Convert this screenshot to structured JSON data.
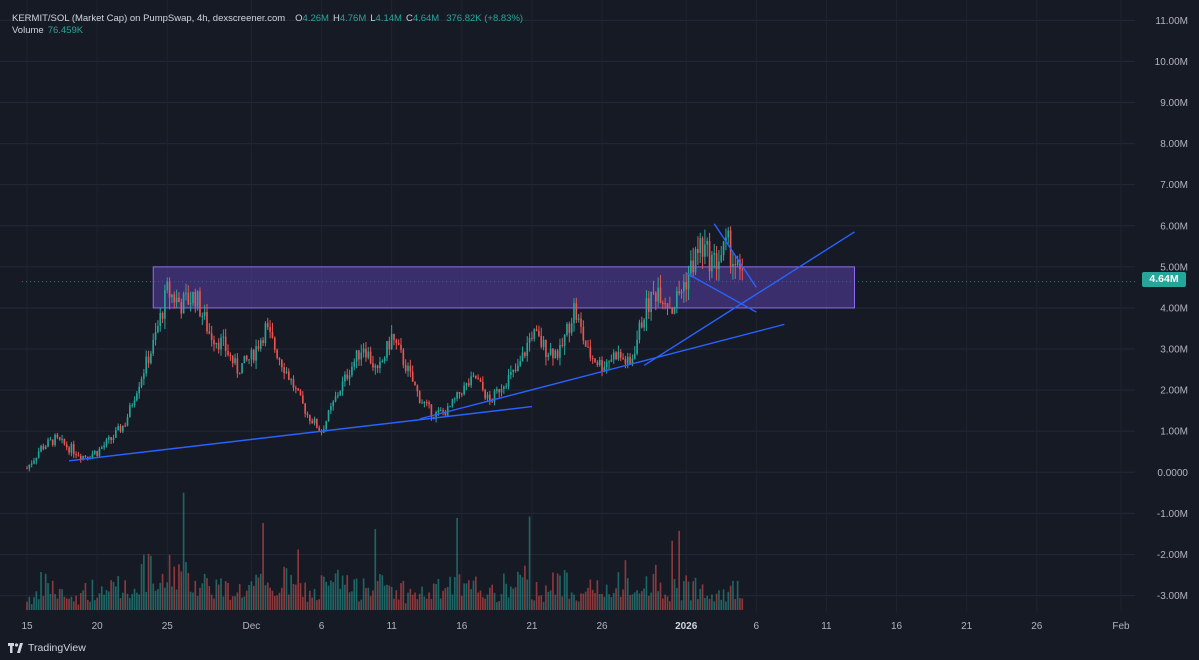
{
  "legend": {
    "symbol": "KERMIT/SOL (Market Cap) on PumpSwap, 4h, dexscreener.com",
    "o_label": "O",
    "o_value": "4.26M",
    "h_label": "H",
    "h_value": "4.76M",
    "l_label": "L",
    "l_value": "4.14M",
    "c_label": "C",
    "c_value": "4.64M",
    "change": "376.82K (+8.83%)",
    "volume_label": "Volume",
    "volume_value": "76.459K"
  },
  "price_badge": "4.64M",
  "branding": "TradingView",
  "colors": {
    "background": "#161a25",
    "up": "#26a69a",
    "down": "#ef5350",
    "trendline": "#2962ff",
    "zone_fill": "#5b3fa8",
    "zone_border": "#8e6cf0"
  },
  "chart_data": {
    "type": "candlestick",
    "timeframe": "4h",
    "y_ticks": [
      "11.00M",
      "10.00M",
      "9.00M",
      "8.00M",
      "7.00M",
      "6.00M",
      "5.00M",
      "4.00M",
      "3.00M",
      "2.00M",
      "1.00M",
      "0.0000",
      "-1.00M",
      "-2.00M",
      "-3.00M"
    ],
    "y_tick_values": [
      11,
      10,
      9,
      8,
      7,
      6,
      5,
      4,
      3,
      2,
      1,
      0,
      -1,
      -2,
      -3
    ],
    "x_ticks": [
      {
        "label": "15",
        "date": "2025-11-15"
      },
      {
        "label": "20",
        "date": "2025-11-20"
      },
      {
        "label": "25",
        "date": "2025-11-25"
      },
      {
        "label": "Dec",
        "date": "2025-12-01"
      },
      {
        "label": "6",
        "date": "2025-12-06"
      },
      {
        "label": "11",
        "date": "2025-12-11"
      },
      {
        "label": "16",
        "date": "2025-12-16"
      },
      {
        "label": "21",
        "date": "2025-12-21"
      },
      {
        "label": "26",
        "date": "2025-12-26"
      },
      {
        "label": "2026",
        "date": "2026-01-01"
      },
      {
        "label": "6",
        "date": "2026-01-06"
      },
      {
        "label": "11",
        "date": "2026-01-11"
      },
      {
        "label": "16",
        "date": "2026-01-16"
      },
      {
        "label": "21",
        "date": "2026-01-21"
      },
      {
        "label": "26",
        "date": "2026-01-26"
      },
      {
        "label": "Feb",
        "date": "2026-02-01"
      }
    ],
    "ylim": [
      -3.4,
      11.3
    ],
    "price_path": [
      [
        "2025-11-15",
        0.1
      ],
      [
        "2025-11-16",
        0.6
      ],
      [
        "2025-11-17",
        0.8
      ],
      [
        "2025-11-18",
        0.6
      ],
      [
        "2025-11-19",
        0.4
      ],
      [
        "2025-11-20",
        0.5
      ],
      [
        "2025-11-21",
        0.8
      ],
      [
        "2025-11-22",
        1.2
      ],
      [
        "2025-11-23",
        2.2
      ],
      [
        "2025-11-24",
        3.1
      ],
      [
        "2025-11-25",
        4.4
      ],
      [
        "2025-11-26",
        4.1
      ],
      [
        "2025-11-27",
        4.3
      ],
      [
        "2025-11-28",
        3.4
      ],
      [
        "2025-11-29",
        3.1
      ],
      [
        "2025-11-30",
        2.5
      ],
      [
        "2025-12-01",
        2.8
      ],
      [
        "2025-12-02",
        3.5
      ],
      [
        "2025-12-03",
        2.8
      ],
      [
        "2025-12-04",
        2.1
      ],
      [
        "2025-12-05",
        1.4
      ],
      [
        "2025-12-06",
        1.0
      ],
      [
        "2025-12-07",
        1.8
      ],
      [
        "2025-12-08",
        2.5
      ],
      [
        "2025-12-09",
        3.1
      ],
      [
        "2025-12-10",
        2.4
      ],
      [
        "2025-12-11",
        3.3
      ],
      [
        "2025-12-12",
        2.6
      ],
      [
        "2025-12-13",
        1.8
      ],
      [
        "2025-12-14",
        1.4
      ],
      [
        "2025-12-15",
        1.5
      ],
      [
        "2025-12-16",
        2.0
      ],
      [
        "2025-12-17",
        2.3
      ],
      [
        "2025-12-18",
        1.7
      ],
      [
        "2025-12-19",
        2.2
      ],
      [
        "2025-12-20",
        2.5
      ],
      [
        "2025-12-21",
        3.4
      ],
      [
        "2025-12-22",
        3.0
      ],
      [
        "2025-12-23",
        2.9
      ],
      [
        "2025-12-24",
        4.0
      ],
      [
        "2025-12-25",
        2.9
      ],
      [
        "2025-12-26",
        2.6
      ],
      [
        "2025-12-27",
        2.9
      ],
      [
        "2025-12-28",
        2.6
      ],
      [
        "2025-12-29",
        3.9
      ],
      [
        "2025-12-30",
        4.5
      ],
      [
        "2025-12-31",
        4.0
      ],
      [
        "2026-01-01",
        4.7
      ],
      [
        "2026-01-02",
        5.5
      ],
      [
        "2026-01-03",
        5.1
      ],
      [
        "2026-01-04",
        5.5
      ],
      [
        "2026-01-05",
        4.64
      ]
    ],
    "volume_path": [
      0.3,
      0.6,
      0.4,
      0.3,
      0.5,
      0.4,
      0.7,
      0.5,
      0.9,
      0.6,
      1.0,
      0.8,
      0.7,
      0.6,
      0.5,
      0.5,
      0.6,
      0.5,
      0.7,
      0.5,
      0.4,
      0.6,
      0.7,
      0.5,
      0.8,
      0.6,
      0.5,
      0.4,
      0.4,
      0.5,
      0.6,
      0.5,
      0.6,
      0.4,
      0.6,
      0.7,
      0.5,
      0.6,
      0.7,
      0.5,
      0.5,
      0.4,
      0.6,
      0.4,
      0.8,
      0.5,
      0.5,
      0.6,
      0.6,
      0.5,
      0.5,
      0.4
    ],
    "annotations": [
      {
        "kind": "rectangle",
        "name": "resistance-zone",
        "x1": "2025-11-24",
        "x2": "2026-01-13",
        "y1": 4.0,
        "y2": 5.0
      },
      {
        "kind": "line",
        "name": "long-support-trendline",
        "x1": "2025-11-18",
        "y1": 0.28,
        "x2": "2025-12-21",
        "y2": 1.6
      },
      {
        "kind": "line",
        "name": "mid-support-trendline",
        "x1": "2025-12-13",
        "y1": 1.3,
        "x2": "2026-01-08",
        "y2": 3.6
      },
      {
        "kind": "line",
        "name": "steep-support-trendline",
        "x1": "2025-12-29",
        "y1": 2.6,
        "x2": "2026-01-13",
        "y2": 5.85
      },
      {
        "kind": "line",
        "name": "wedge-upper-line",
        "x1": "2026-01-03",
        "y1": 6.05,
        "x2": "2026-01-06",
        "y2": 4.5
      },
      {
        "kind": "line",
        "name": "wedge-lower-line",
        "x1": "2026-01-01",
        "y1": 4.85,
        "x2": "2026-01-06",
        "y2": 3.9
      }
    ]
  }
}
